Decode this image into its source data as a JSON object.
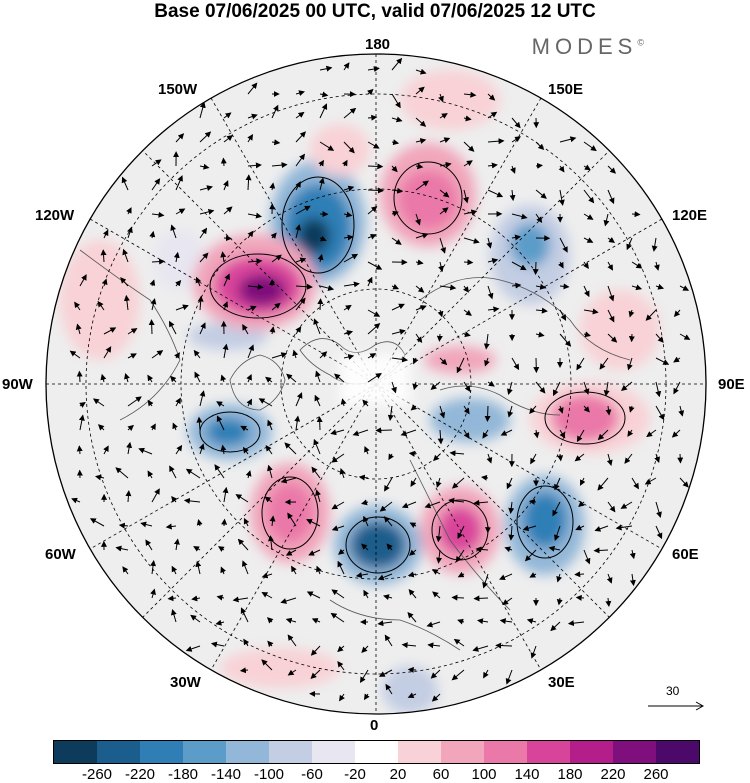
{
  "title": "Base 07/06/2025 00 UTC, valid 07/06/2025 12 UTC",
  "brand": "MODES",
  "brand_mark": "©",
  "longitude_labels": {
    "top": "180",
    "bottom": "0",
    "left": "90W",
    "right": "90E",
    "upper_left_1": "150W",
    "upper_left_2": "120W",
    "upper_right_1": "150E",
    "upper_right_2": "120E",
    "lower_left_1": "60W",
    "lower_left_2": "30W",
    "lower_right_1": "60E",
    "lower_right_2": "30E"
  },
  "vector_legend": {
    "value": "30"
  },
  "colorbar": {
    "colors": [
      "#0e3a5c",
      "#1b5d8c",
      "#2f7fb6",
      "#5b9cc9",
      "#93b7d8",
      "#c3cde3",
      "#e7e6f1",
      "#ffffff",
      "#f8d2d6",
      "#f1a6bb",
      "#ea78a8",
      "#d9449b",
      "#b41e8a",
      "#7f0f7c",
      "#4b0a6a"
    ],
    "tick_labels": [
      "-260",
      "-220",
      "-180",
      "-140",
      "-100",
      "-60",
      "-20",
      "20",
      "60",
      "100",
      "140",
      "180",
      "220",
      "260"
    ]
  },
  "map_features": {
    "projection": "north-polar-stereographic",
    "graticule": "dashed",
    "anomaly_centers": [
      {
        "sign": "negative",
        "strength": "strong",
        "region": "northeast-pacific"
      },
      {
        "sign": "positive",
        "strength": "strong",
        "region": "alaska-west-canada"
      },
      {
        "sign": "positive",
        "strength": "moderate",
        "region": "bering-east-siberia"
      },
      {
        "sign": "negative",
        "strength": "moderate",
        "region": "hudson-bay"
      },
      {
        "sign": "positive",
        "strength": "moderate",
        "region": "north-atlantic"
      },
      {
        "sign": "negative",
        "strength": "moderate",
        "region": "iceland-norwegian-sea"
      },
      {
        "sign": "positive",
        "strength": "moderate",
        "region": "scandinavia-barents"
      },
      {
        "sign": "negative",
        "strength": "moderate",
        "region": "western-russia"
      },
      {
        "sign": "positive",
        "strength": "moderate",
        "region": "central-siberia"
      },
      {
        "sign": "negative",
        "strength": "weak",
        "region": "east-siberia"
      }
    ]
  }
}
